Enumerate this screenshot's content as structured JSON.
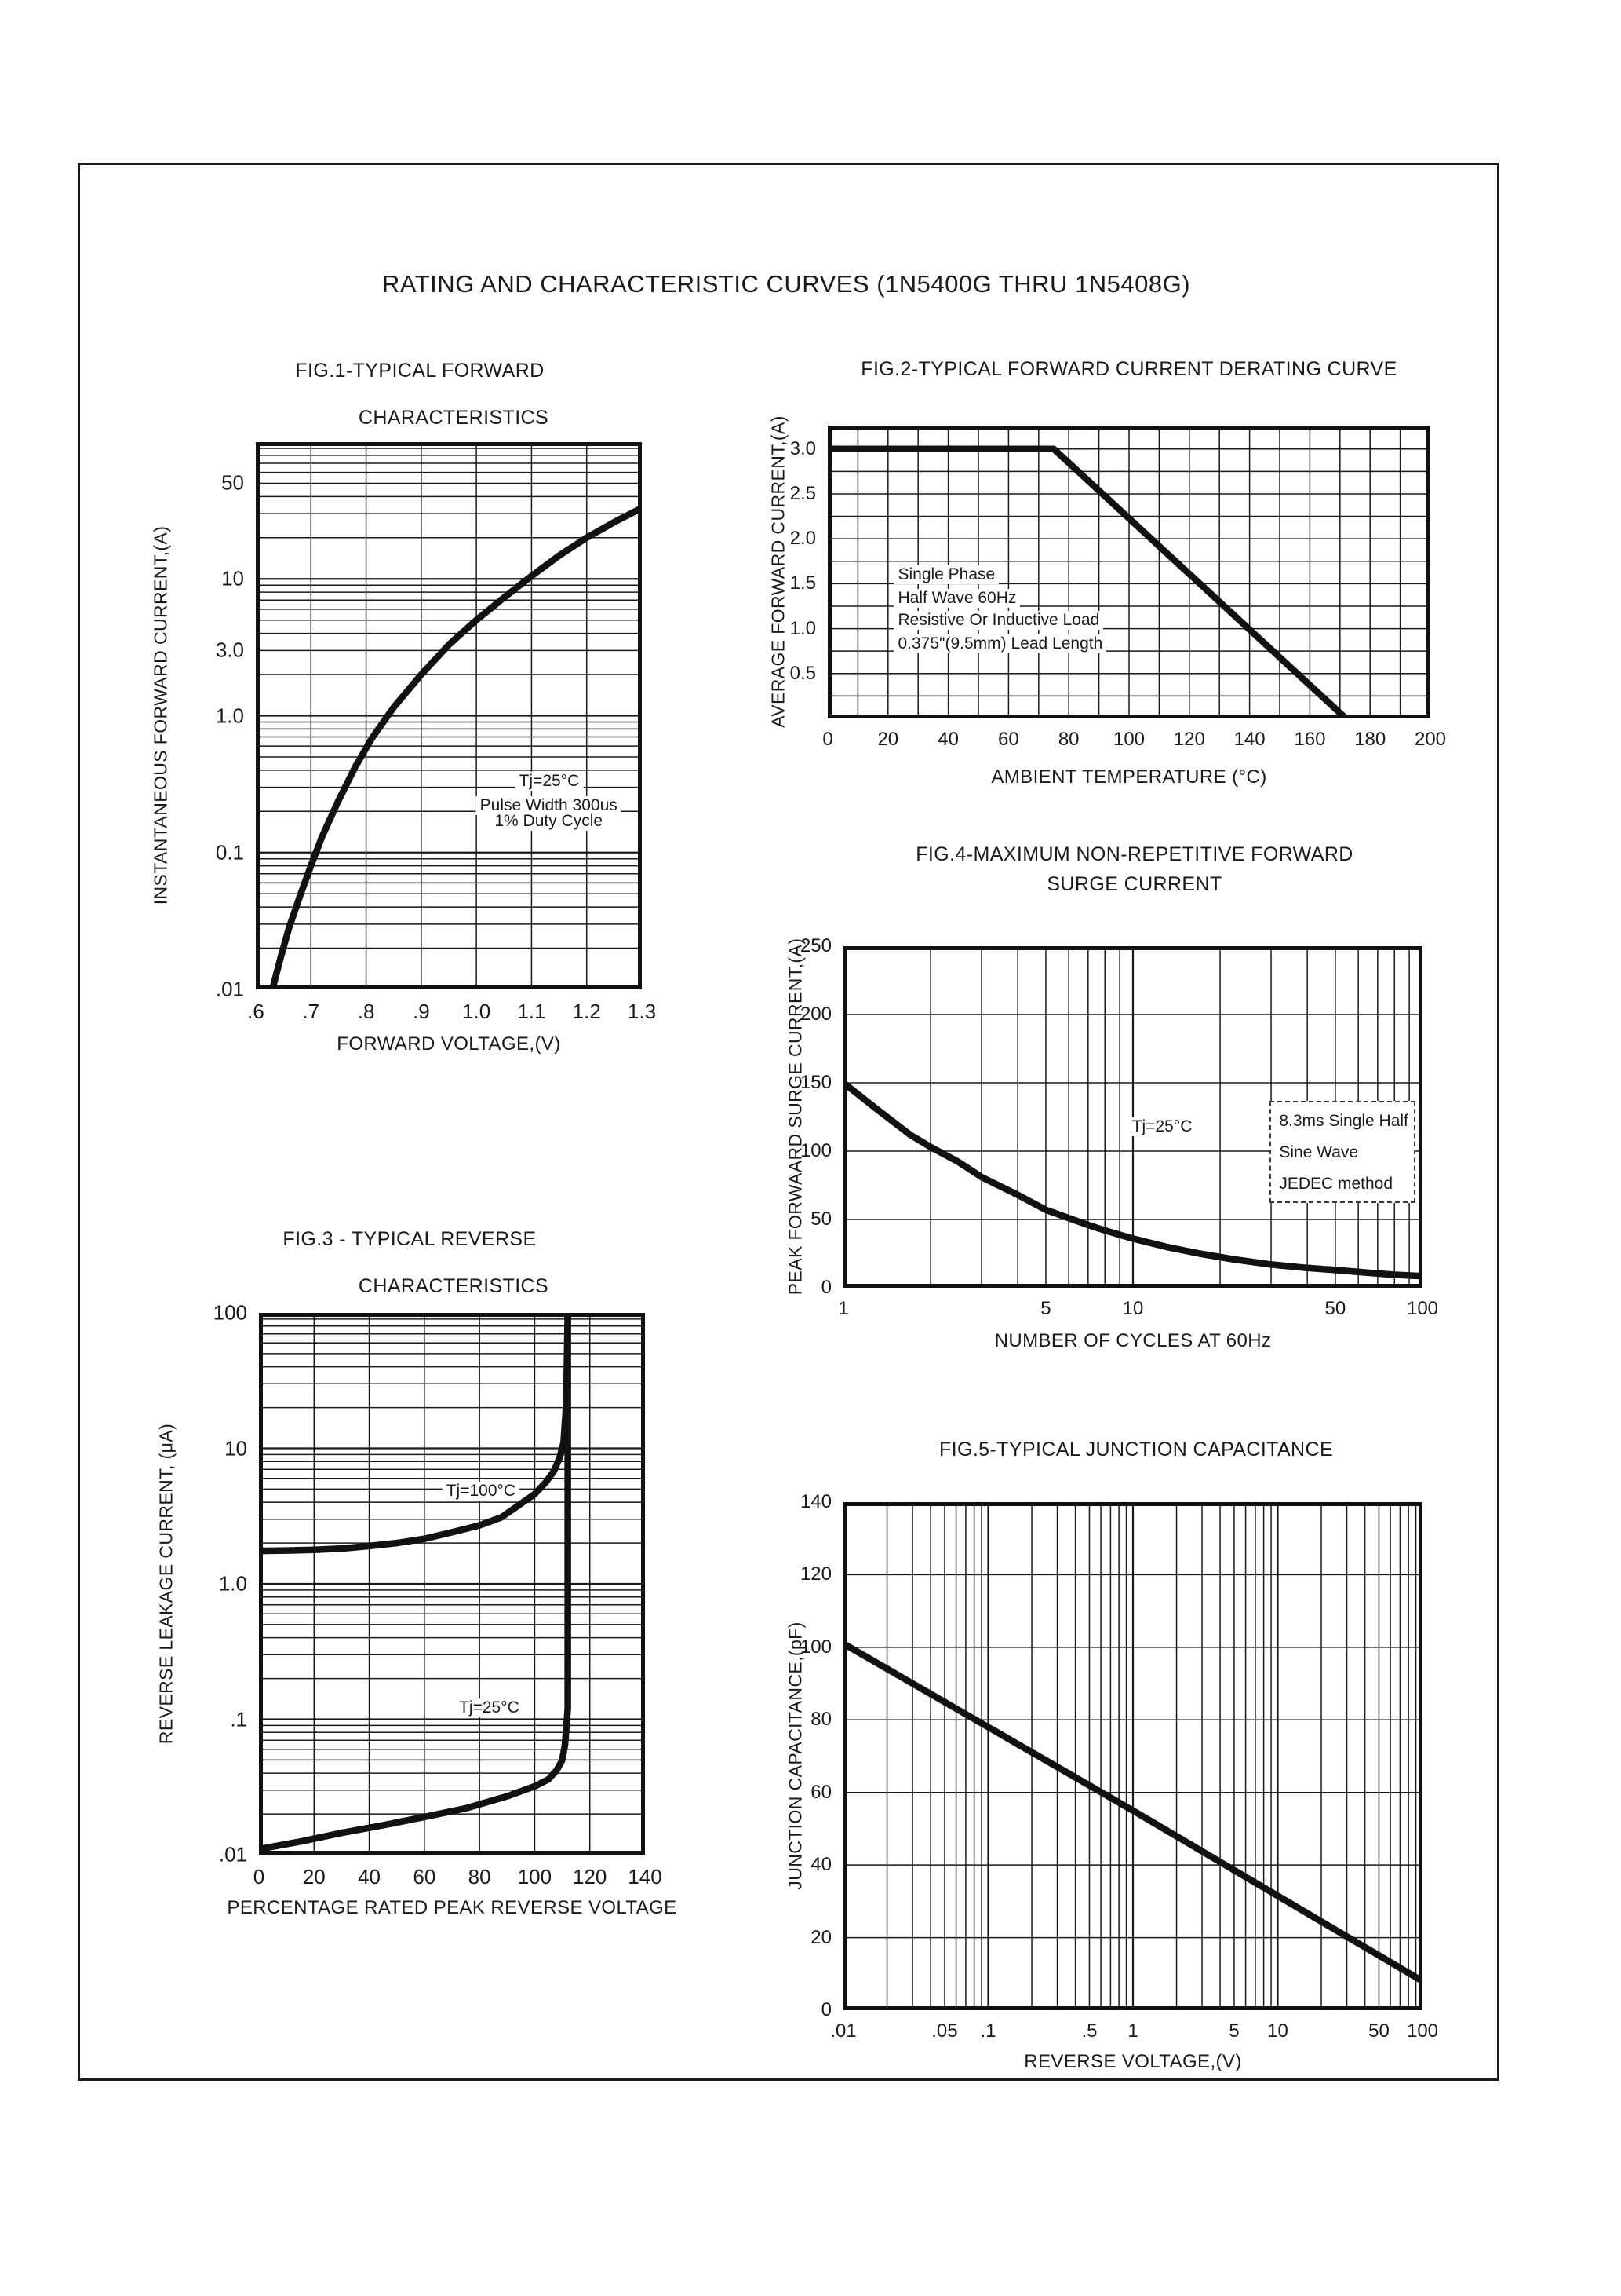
{
  "page": {
    "title": "RATING AND CHARACTERISTIC CURVES (1N5400G THRU 1N5408G)"
  },
  "chart_data": [
    {
      "type": "line",
      "title_lines": [
        "FIG.1-TYPICAL FORWARD",
        "CHARACTERISTICS"
      ],
      "xlabel": "FORWARD VOLTAGE,(V)",
      "ylabel": "INSTANTANEOUS FORWARD CURRENT,(A)",
      "x_scale": "linear",
      "x_range": [
        0.6,
        1.3
      ],
      "x_grid": 0.1,
      "y_scale": "log",
      "y_range": [
        0.01,
        100
      ],
      "y_grid": "log",
      "x_ticks": [
        {
          "l": ".6",
          "v": 0.6
        },
        {
          "l": ".7",
          "v": 0.7
        },
        {
          "l": ".8",
          "v": 0.8
        },
        {
          "l": ".9",
          "v": 0.9
        },
        {
          "l": "1.0",
          "v": 1.0
        },
        {
          "l": "1.1",
          "v": 1.1
        },
        {
          "l": "1.2",
          "v": 1.2
        },
        {
          "l": "1.3",
          "v": 1.3
        }
      ],
      "y_ticks": [
        {
          "l": "50",
          "v": 50
        },
        {
          "l": "10",
          "v": 10
        },
        {
          "l": "3.0",
          "v": 3
        },
        {
          "l": "1.0",
          "v": 1
        },
        {
          "l": "0.1",
          "v": 0.1
        },
        {
          "l": ".01",
          "v": 0.01
        }
      ],
      "annotations": [
        {
          "text": "Tj=25°C",
          "x": 1.132,
          "y": 0.33,
          "anchor": "center"
        },
        {
          "text": "Pulse Width 300us",
          "x": 1.131,
          "y": 0.22,
          "anchor": "center"
        },
        {
          "text": "1% Duty Cycle",
          "x": 1.131,
          "y": 0.17,
          "anchor": "center"
        }
      ],
      "series": [
        {
          "name": "forward-characteristic",
          "points": [
            [
              0.63,
              0.01
            ],
            [
              0.645,
              0.017
            ],
            [
              0.66,
              0.028
            ],
            [
              0.68,
              0.048
            ],
            [
              0.7,
              0.08
            ],
            [
              0.72,
              0.13
            ],
            [
              0.75,
              0.24
            ],
            [
              0.78,
              0.42
            ],
            [
              0.81,
              0.68
            ],
            [
              0.85,
              1.15
            ],
            [
              0.9,
              2.0
            ],
            [
              0.95,
              3.3
            ],
            [
              1.0,
              5.0
            ],
            [
              1.05,
              7.3
            ],
            [
              1.1,
              10.5
            ],
            [
              1.15,
              14.8
            ],
            [
              1.2,
              20
            ],
            [
              1.25,
              26
            ],
            [
              1.3,
              33
            ]
          ]
        }
      ]
    },
    {
      "type": "line",
      "title_lines": [
        "FIG.2-TYPICAL FORWARD CURRENT DERATING CURVE"
      ],
      "xlabel": "AMBIENT TEMPERATURE (°C)",
      "ylabel": "AVERAGE FORWARD CURRENT,(A)",
      "x_scale": "linear",
      "x_range": [
        0,
        200
      ],
      "x_grid": 10,
      "y_scale": "linear",
      "y_range": [
        0,
        3.26
      ],
      "y_grid": 0.25,
      "x_ticks": [
        {
          "l": "0",
          "v": 0
        },
        {
          "l": "20",
          "v": 20
        },
        {
          "l": "40",
          "v": 40
        },
        {
          "l": "60",
          "v": 60
        },
        {
          "l": "80",
          "v": 80
        },
        {
          "l": "100",
          "v": 100
        },
        {
          "l": "120",
          "v": 120
        },
        {
          "l": "140",
          "v": 140
        },
        {
          "l": "160",
          "v": 160
        },
        {
          "l": "180",
          "v": 180
        },
        {
          "l": "200",
          "v": 200
        }
      ],
      "y_ticks": [
        {
          "l": "3.0",
          "v": 3.0
        },
        {
          "l": "2.5",
          "v": 2.5
        },
        {
          "l": "2.0",
          "v": 2.0
        },
        {
          "l": "1.5",
          "v": 1.5
        },
        {
          "l": "1.0",
          "v": 1.0
        },
        {
          "l": "0.5",
          "v": 0.5
        }
      ],
      "annotations": [
        {
          "text": "Single Phase",
          "x": 22,
          "y": 1.6,
          "anchor": "left"
        },
        {
          "text": "Half Wave 60Hz",
          "x": 22,
          "y": 1.34,
          "anchor": "left"
        },
        {
          "text": "Resistive Or Inductive Load",
          "x": 22,
          "y": 1.09,
          "anchor": "left"
        },
        {
          "text": "0.375\"(9.5mm) Lead Length",
          "x": 22,
          "y": 0.83,
          "anchor": "left"
        }
      ],
      "series": [
        {
          "name": "derating-curve",
          "points": [
            [
              0,
              3.0
            ],
            [
              75,
              3.0
            ],
            [
              172,
              0
            ]
          ]
        }
      ]
    },
    {
      "type": "line",
      "title_lines": [
        "FIG.3 - TYPICAL REVERSE",
        "CHARACTERISTICS"
      ],
      "xlabel": "PERCENTAGE RATED PEAK REVERSE VOLTAGE",
      "ylabel": "REVERSE LEAKAGE CURRENT, (μA)",
      "x_scale": "linear",
      "x_range": [
        0,
        140
      ],
      "x_grid": 20,
      "y_scale": "log",
      "y_range": [
        0.01,
        100
      ],
      "y_grid": "log",
      "x_ticks": [
        {
          "l": "0",
          "v": 0
        },
        {
          "l": "20",
          "v": 20
        },
        {
          "l": "40",
          "v": 40
        },
        {
          "l": "60",
          "v": 60
        },
        {
          "l": "80",
          "v": 80
        },
        {
          "l": "100",
          "v": 100
        },
        {
          "l": "120",
          "v": 120
        },
        {
          "l": "140",
          "v": 140
        }
      ],
      "y_ticks": [
        {
          "l": "100",
          "v": 100
        },
        {
          "l": "10",
          "v": 10
        },
        {
          "l": "1.0",
          "v": 1
        },
        {
          "l": ".1",
          "v": 0.1
        },
        {
          "l": ".01",
          "v": 0.01
        }
      ],
      "annotations": [
        {
          "text": "Tj=100°C",
          "x": 80.5,
          "y": 4.85,
          "anchor": "center"
        },
        {
          "text": "Tj=25°C",
          "x": 83.5,
          "y": 0.122,
          "anchor": "center"
        }
      ],
      "series": [
        {
          "name": "Tj=100°C",
          "points": [
            [
              0,
              1.75
            ],
            [
              10,
              1.76
            ],
            [
              20,
              1.78
            ],
            [
              30,
              1.82
            ],
            [
              40,
              1.9
            ],
            [
              50,
              2.0
            ],
            [
              60,
              2.15
            ],
            [
              70,
              2.4
            ],
            [
              80,
              2.7
            ],
            [
              88,
              3.1
            ],
            [
              95,
              3.9
            ],
            [
              100,
              4.6
            ],
            [
              104,
              5.6
            ],
            [
              107,
              6.8
            ],
            [
              109,
              8.5
            ],
            [
              110.5,
              11
            ],
            [
              111.5,
              22
            ],
            [
              112,
              100
            ]
          ]
        },
        {
          "name": "Tj=25°C",
          "points": [
            [
              0,
              0.011
            ],
            [
              15,
              0.0125
            ],
            [
              30,
              0.0145
            ],
            [
              45,
              0.0165
            ],
            [
              60,
              0.019
            ],
            [
              75,
              0.022
            ],
            [
              90,
              0.027
            ],
            [
              100,
              0.032
            ],
            [
              105,
              0.036
            ],
            [
              108,
              0.042
            ],
            [
              110,
              0.05
            ],
            [
              111,
              0.065
            ],
            [
              112,
              0.12
            ],
            [
              112,
              100
            ]
          ]
        }
      ]
    },
    {
      "type": "line",
      "title_lines": [
        "FIG.4-MAXIMUM NON-REPETITIVE FORWARD",
        "SURGE CURRENT"
      ],
      "xlabel": "NUMBER OF CYCLES AT 60Hz",
      "ylabel": "PEAK FORWAARD SURGE CURRENT,(A)",
      "x_scale": "log",
      "x_range": [
        1,
        100
      ],
      "x_grid": "log",
      "y_scale": "linear",
      "y_range": [
        0,
        250
      ],
      "y_grid": 50,
      "x_ticks": [
        {
          "l": "1",
          "v": 1
        },
        {
          "l": "5",
          "v": 5
        },
        {
          "l": "10",
          "v": 10
        },
        {
          "l": "50",
          "v": 50
        },
        {
          "l": "100",
          "v": 100
        }
      ],
      "y_ticks": [
        {
          "l": "0",
          "v": 0
        },
        {
          "l": "50",
          "v": 50
        },
        {
          "l": "100",
          "v": 100
        },
        {
          "l": "150",
          "v": 150
        },
        {
          "l": "200",
          "v": 200
        },
        {
          "l": "250",
          "v": 250
        }
      ],
      "annotations": [
        {
          "text": "Tj=25°C",
          "x": 12.6,
          "y": 118,
          "anchor": "center"
        },
        {
          "text": "8.3ms Single Half",
          "x": 31,
          "y": 122,
          "anchor": "left"
        },
        {
          "text": "Sine Wave",
          "x": 31,
          "y": 99,
          "anchor": "left"
        },
        {
          "text": "JEDEC method",
          "x": 31,
          "y": 76,
          "anchor": "left"
        }
      ],
      "boxes": [
        {
          "x1": 29.6,
          "y1": 136.8,
          "x2": 92.2,
          "y2": 64.4
        }
      ],
      "series": [
        {
          "name": "surge-current",
          "points": [
            [
              1,
              150
            ],
            [
              1.3,
              131
            ],
            [
              1.7,
              112
            ],
            [
              2,
              103
            ],
            [
              2.5,
              92
            ],
            [
              3,
              81
            ],
            [
              4,
              68
            ],
            [
              5,
              57
            ],
            [
              6,
              51
            ],
            [
              7,
              46
            ],
            [
              8,
              42
            ],
            [
              10,
              36
            ],
            [
              13,
              30
            ],
            [
              17,
              25
            ],
            [
              22,
              21
            ],
            [
              30,
              17
            ],
            [
              40,
              14.5
            ],
            [
              50,
              13
            ],
            [
              65,
              11
            ],
            [
              80,
              9.5
            ],
            [
              100,
              8.5
            ]
          ]
        }
      ]
    },
    {
      "type": "line",
      "title_lines": [
        "FIG.5-TYPICAL JUNCTION CAPACITANCE"
      ],
      "xlabel": "REVERSE VOLTAGE,(V)",
      "ylabel": "JUNCTION CAPACITANCE,(pF)",
      "x_scale": "log",
      "x_range": [
        0.01,
        100
      ],
      "x_grid": "log",
      "y_scale": "linear",
      "y_range": [
        0,
        140
      ],
      "y_grid": 20,
      "x_ticks": [
        {
          "l": ".01",
          "v": 0.01
        },
        {
          "l": ".05",
          "v": 0.05
        },
        {
          "l": ".1",
          "v": 0.1
        },
        {
          "l": ".5",
          "v": 0.5
        },
        {
          "l": "1",
          "v": 1
        },
        {
          "l": "5",
          "v": 5
        },
        {
          "l": "10",
          "v": 10
        },
        {
          "l": "50",
          "v": 50
        },
        {
          "l": "100",
          "v": 100
        }
      ],
      "y_ticks": [
        {
          "l": "0",
          "v": 0
        },
        {
          "l": "20",
          "v": 20
        },
        {
          "l": "40",
          "v": 40
        },
        {
          "l": "60",
          "v": 60
        },
        {
          "l": "80",
          "v": 80
        },
        {
          "l": "100",
          "v": 100
        },
        {
          "l": "120",
          "v": 120
        },
        {
          "l": "140",
          "v": 140
        }
      ],
      "annotations": [],
      "series": [
        {
          "name": "junction-capacitance",
          "points": [
            [
              0.01,
              101
            ],
            [
              0.1,
              78
            ],
            [
              1,
              55
            ],
            [
              10,
              31.5
            ],
            [
              100,
              8
            ]
          ]
        }
      ]
    }
  ]
}
